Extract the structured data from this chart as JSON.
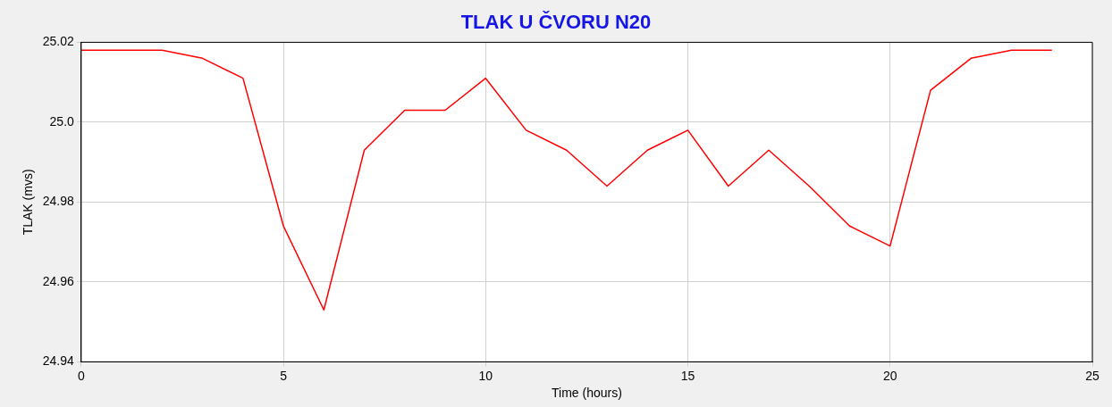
{
  "chart_data": {
    "type": "line",
    "title": "TLAK U ČVORU N20",
    "xlabel": "Time (hours)",
    "ylabel": "TLAK (mvs)",
    "x": [
      0,
      1,
      2,
      3,
      4,
      5,
      6,
      7,
      8,
      9,
      10,
      11,
      12,
      13,
      14,
      15,
      16,
      17,
      18,
      19,
      20,
      21,
      22,
      23,
      24
    ],
    "series": [
      {
        "color": "#ff0000",
        "values": [
          25.018,
          25.018,
          25.018,
          25.016,
          25.011,
          24.974,
          24.953,
          24.993,
          25.003,
          25.003,
          25.011,
          24.998,
          24.993,
          24.984,
          24.993,
          24.998,
          24.984,
          24.993,
          24.984,
          24.974,
          24.969,
          25.008,
          25.016,
          25.018,
          25.018
        ]
      }
    ],
    "xlim": [
      0,
      25
    ],
    "xticks": [
      0,
      5,
      10,
      15,
      20,
      25
    ],
    "ylim": [
      24.94,
      25.02
    ],
    "yticks": [
      24.94,
      24.96,
      24.98,
      {
        "value": 25.0,
        "label": "25.0"
      },
      25.02
    ],
    "grid": true,
    "legend": false,
    "marker": "none",
    "line_style": "solid"
  }
}
